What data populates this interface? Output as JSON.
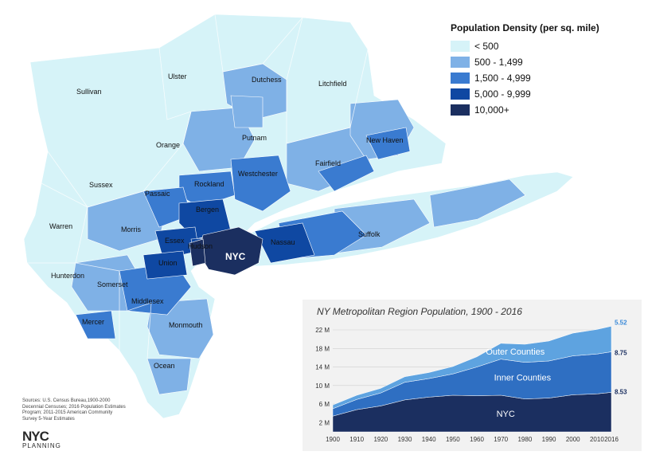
{
  "colors": {
    "ocean": "#ffffff",
    "bin1": "#d6f3f8",
    "bin2": "#7fb1e6",
    "bin3": "#3a7bd0",
    "bin4": "#0f48a2",
    "bin5": "#1b2f60",
    "inset_bg": "#f2f2f2",
    "outer_area": "#5ea3e0",
    "inner_area": "#2f6fc2",
    "nyc_area": "#1b2f60"
  },
  "legend": {
    "title": "Population Density (per sq. mile)",
    "items": [
      {
        "label": "< 500",
        "color": "#d6f3f8"
      },
      {
        "label": "500 - 1,499",
        "color": "#7fb1e6"
      },
      {
        "label": "1,500 - 4,999",
        "color": "#3a7bd0"
      },
      {
        "label": "5,000 - 9,999",
        "color": "#0f48a2"
      },
      {
        "label": "10,000+",
        "color": "#1b2f60"
      }
    ]
  },
  "map_labels": {
    "sullivan": "Sullivan",
    "ulster": "Ulster",
    "dutchess": "Dutchess",
    "litchfield": "Litchfield",
    "orange": "Orange",
    "putnam": "Putnam",
    "new_haven": "New Haven",
    "sussex": "Sussex",
    "passaic": "Passaic",
    "rockland": "Rockland",
    "westchester": "Westchester",
    "fairfield": "Fairfield",
    "bergen": "Bergen",
    "warren": "Warren",
    "morris": "Morris",
    "essex": "Essex",
    "hudson": "Hudson",
    "nassau": "Nassau",
    "suffolk": "Suffolk",
    "nyc": "NYC",
    "union": "Union",
    "hunterdon": "Hunterdon",
    "somerset": "Somerset",
    "middlesex": "Middlesex",
    "mercer": "Mercer",
    "monmouth": "Monmouth",
    "ocean": "Ocean"
  },
  "sources": "Sources: U.S. Census Bureau,1900-2000 Decennial Censuses; 2016 Population Estimates Program; 2011-2015 American Community Survey 5-Year Estimates",
  "logo": {
    "main": "NYC",
    "sub": "PLANNING"
  },
  "chart_data": {
    "type": "area",
    "title": "NY Metropolitan Region Population, 1900 - 2016",
    "x": [
      1900,
      1910,
      1920,
      1930,
      1940,
      1950,
      1960,
      1970,
      1980,
      1990,
      2000,
      2010,
      2016
    ],
    "xtick_labels": [
      "1900",
      "1910",
      "1920",
      "1930",
      "1940",
      "1950",
      "1960",
      "1970",
      "1980",
      "1990",
      "2000",
      "2010",
      "2016"
    ],
    "ytick_labels": [
      "2 M",
      "6 M",
      "10 M",
      "14 M",
      "18 M",
      "22 M"
    ],
    "ylim": [
      0,
      22
    ],
    "yticks": [
      2,
      6,
      10,
      14,
      18,
      22
    ],
    "stacked": true,
    "series": [
      {
        "name": "NYC",
        "values": [
          3.4,
          4.8,
          5.6,
          6.9,
          7.5,
          7.9,
          7.8,
          7.9,
          7.1,
          7.3,
          8.0,
          8.2,
          8.53
        ],
        "end_label": "8.53"
      },
      {
        "name": "Inner Counties",
        "values": [
          1.6,
          2.2,
          2.8,
          3.8,
          4.0,
          4.6,
          6.2,
          7.8,
          7.9,
          8.0,
          8.4,
          8.6,
          8.75
        ],
        "end_label": "8.75"
      },
      {
        "name": "Outer Counties",
        "values": [
          0.8,
          0.9,
          1.0,
          1.2,
          1.3,
          1.6,
          2.2,
          3.4,
          3.9,
          4.3,
          4.9,
          5.3,
          5.52
        ],
        "end_label": "5.52"
      }
    ]
  }
}
